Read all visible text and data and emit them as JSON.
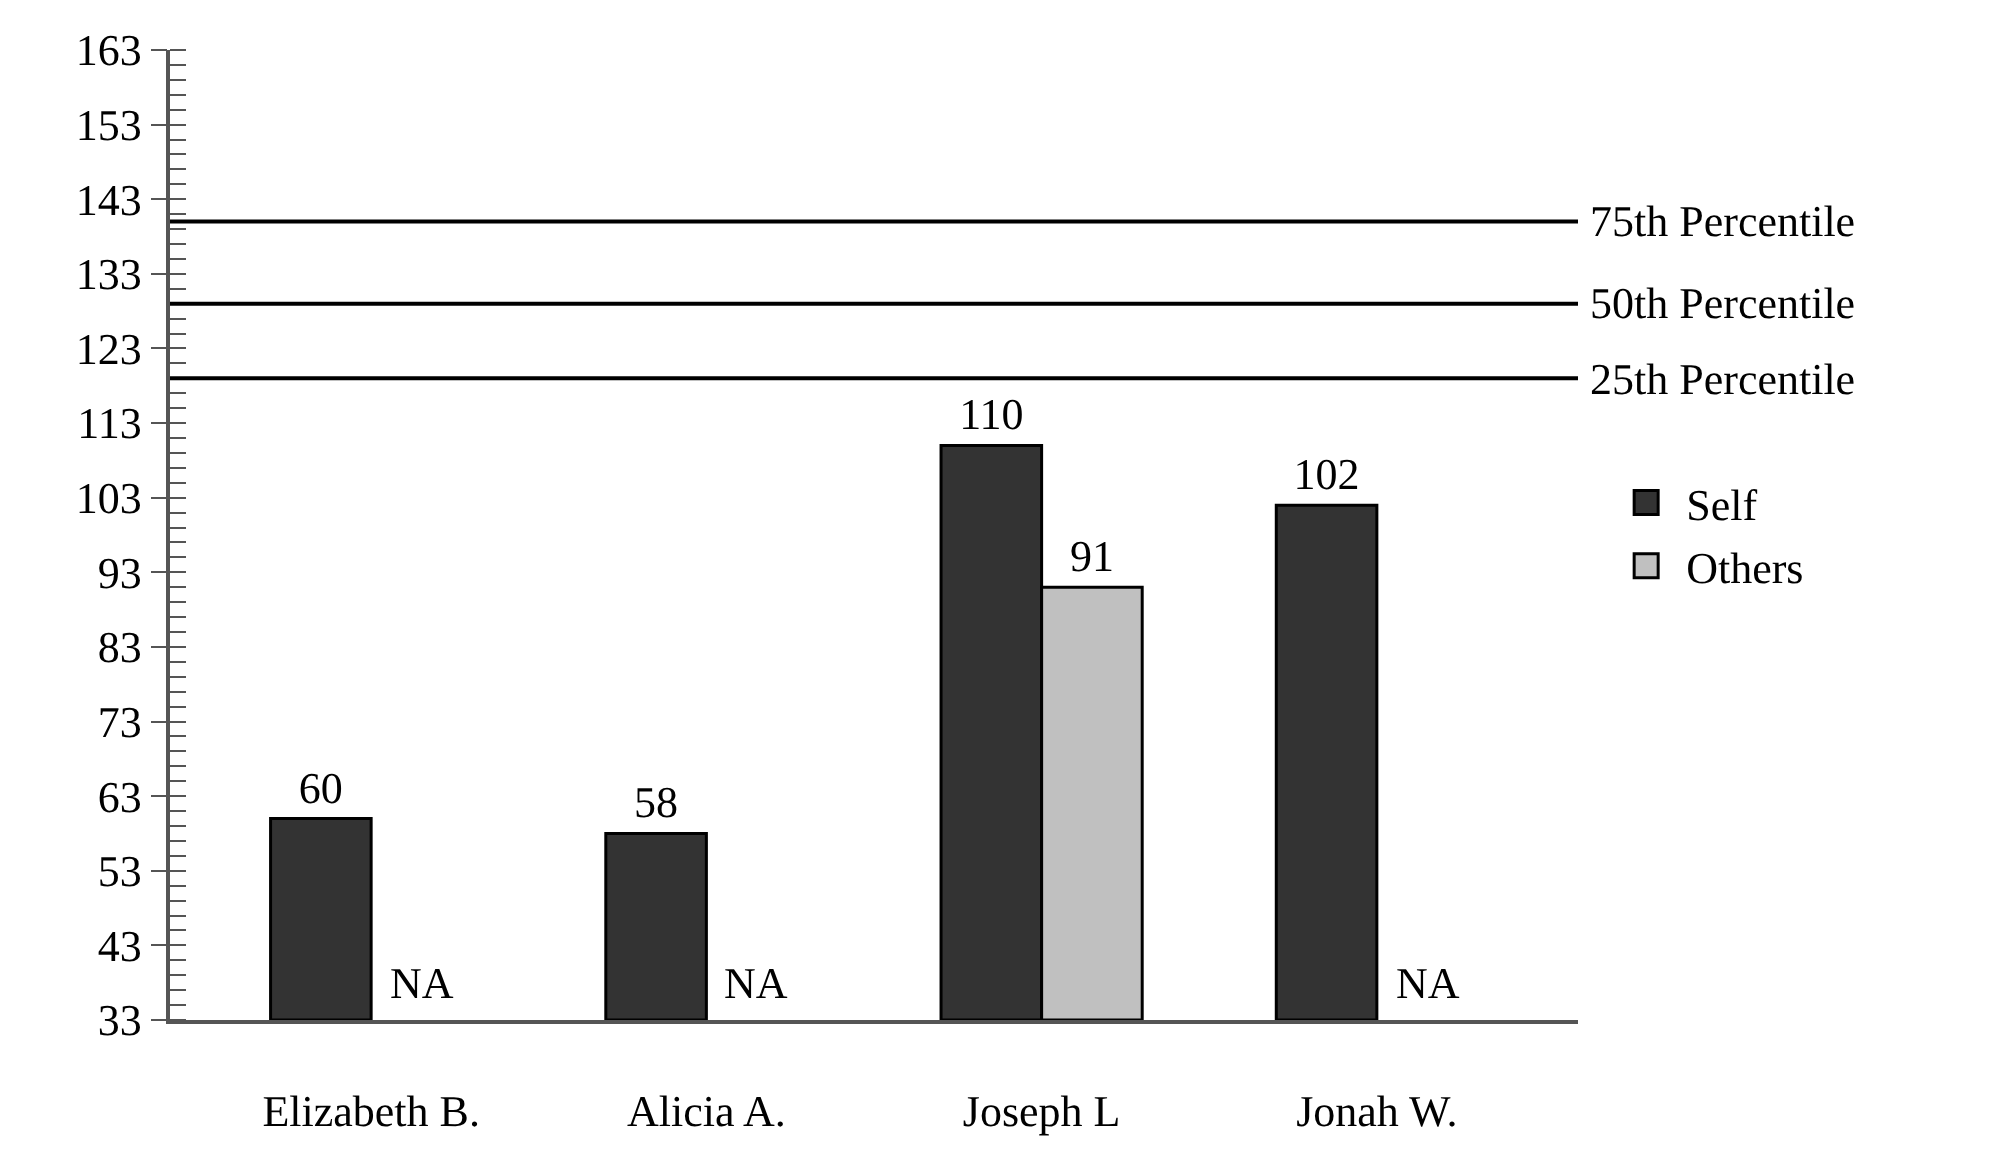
{
  "chart_data": {
    "type": "bar",
    "categories": [
      "Elizabeth B.",
      "Alicia A.",
      "Joseph L",
      "Jonah W."
    ],
    "series": [
      {
        "name": "Self",
        "color": "#333333",
        "values": [
          60,
          58,
          110,
          102
        ],
        "value_labels": [
          "60",
          "58",
          "110",
          "102"
        ]
      },
      {
        "name": "Others",
        "color": "#c0c0c0",
        "values": [
          null,
          null,
          91,
          null
        ],
        "value_labels": [
          "NA",
          "NA",
          "91",
          "NA"
        ]
      }
    ],
    "ylim": [
      33,
      163
    ],
    "yticks": [
      33,
      43,
      53,
      63,
      73,
      83,
      93,
      103,
      113,
      123,
      133,
      143,
      153,
      163
    ],
    "ref_lines": [
      {
        "axis": "y",
        "value": 140,
        "label": "75th Percentile",
        "color": "#000000"
      },
      {
        "axis": "y",
        "value": 129,
        "label": "50th Percentile",
        "color": "#000000"
      },
      {
        "axis": "y",
        "value": 119,
        "label": "25th Percentile",
        "color": "#000000"
      }
    ],
    "legend": "right"
  }
}
